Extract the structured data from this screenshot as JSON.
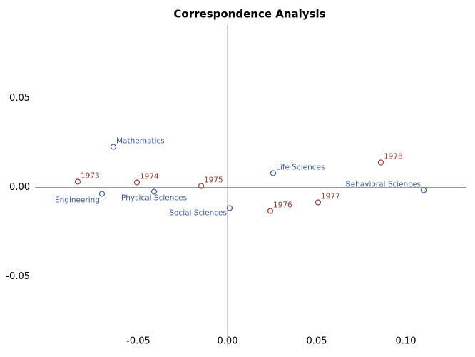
{
  "chart_data": {
    "type": "scatter",
    "title": "Correspondence Analysis",
    "xlim": [
      -0.108,
      0.134
    ],
    "ylim": [
      -0.089,
      0.091
    ],
    "xticks": [
      {
        "value": -0.05,
        "label": "-0.05"
      },
      {
        "value": 0,
        "label": "0.00"
      },
      {
        "value": 0.05,
        "label": "0.05"
      },
      {
        "value": 0.1,
        "label": "0.10"
      }
    ],
    "yticks": [
      {
        "value": -0.05,
        "label": "-0.05"
      },
      {
        "value": 0,
        "label": "0.00"
      },
      {
        "value": 0.05,
        "label": "0.05"
      }
    ],
    "series": [
      {
        "color": "#a23a2a",
        "labels": [
          "1973",
          "1974",
          "1975",
          "1976",
          "1977",
          "1978"
        ],
        "x": [
          -0.084,
          -0.0508,
          -0.0148,
          0.024,
          0.0508,
          0.086
        ],
        "values": [
          0.0032,
          0.0028,
          0.0008,
          -0.0132,
          -0.0084,
          0.014
        ]
      },
      {
        "color": "#3b5ba5",
        "labels": [
          "Mathematics",
          "Engineering",
          "Physical Sciences",
          "Social Sciences",
          "Life Sciences",
          "Behavioral Sciences"
        ],
        "x": [
          -0.064,
          -0.0704,
          -0.0412,
          0.0012,
          0.0256,
          0.11
        ],
        "values": [
          0.0228,
          -0.0036,
          -0.0024,
          -0.0116,
          0.008,
          -0.0016
        ]
      }
    ]
  }
}
